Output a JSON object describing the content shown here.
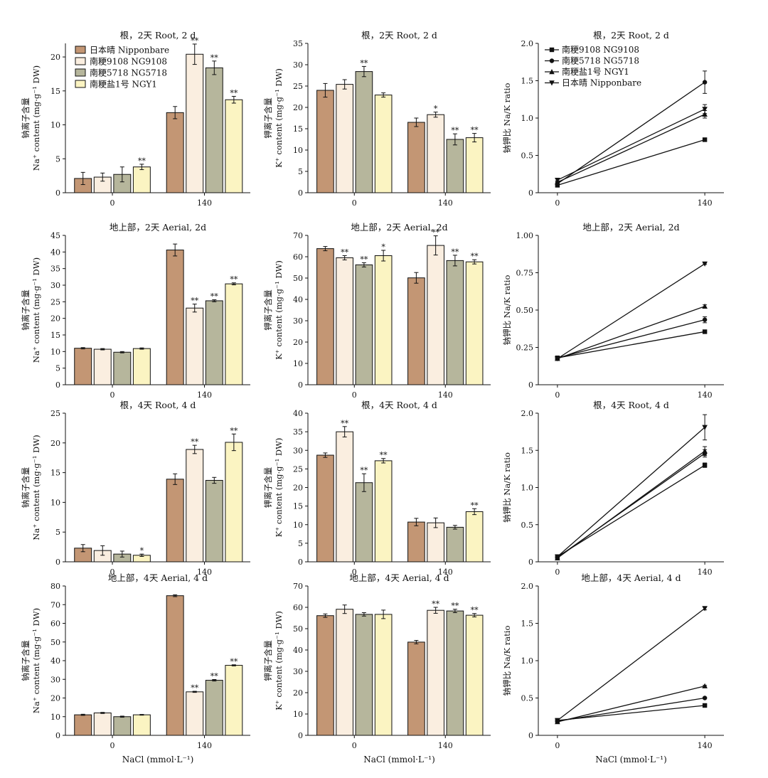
{
  "colors": {
    "Nipponbare": "#c39674",
    "NG9108": "#faeee0",
    "NG5718": "#b6b69c",
    "NGY1": "#fbf4c2",
    "line": "#111111"
  },
  "legend_bar": {
    "placement": "top-left of first panel",
    "entries": [
      "日本晴 Nipponbare",
      "南粳9108 NG9108",
      "南粳5718 NG5718",
      "南粳盐1号 NGY1"
    ]
  },
  "legend_line": {
    "placement": "top-left of first ratio panel",
    "entries": [
      "南粳9108 NG9108",
      "南粳5718 NG5718",
      "南粳盐1号 NGY1",
      "日本晴 Nipponbare"
    ],
    "markers": [
      "square",
      "circle",
      "triangle-up",
      "triangle-down"
    ]
  },
  "shared": {
    "xlabel": "NaCl (mmol·L⁻¹)",
    "na_ylabel_line1": "钠离子含量",
    "na_ylabel_line2": "Na⁺ content (mg·g⁻¹ DW)",
    "k_ylabel_line1": "钾离子含量",
    "k_ylabel_line2": "K⁺ content (mg·g⁻¹ DW)",
    "ratio_ylabel": "钠钾比 Na/K ratio"
  },
  "chart_data": [
    {
      "type": "bar",
      "panel": "na-root-2d",
      "title": "根，2天 Root, 2 d",
      "categories": [
        "0",
        "140"
      ],
      "ylim": [
        0,
        22
      ],
      "yticks": [
        0,
        5,
        10,
        15,
        20
      ],
      "ylabel_kind": "na",
      "series": [
        {
          "name": "日本晴 Nipponbare",
          "color_key": "Nipponbare",
          "values": [
            2.1,
            11.8
          ],
          "errors": [
            0.9,
            0.9
          ],
          "sig": [
            "",
            ""
          ]
        },
        {
          "name": "南粳9108 NG9108",
          "color_key": "NG9108",
          "values": [
            2.3,
            20.4
          ],
          "errors": [
            0.6,
            1.5
          ],
          "sig": [
            "",
            "**"
          ]
        },
        {
          "name": "南粳5718 NG5718",
          "color_key": "NG5718",
          "values": [
            2.7,
            18.4
          ],
          "errors": [
            1.1,
            1.0
          ],
          "sig": [
            "",
            "**"
          ]
        },
        {
          "name": "南粳盐1号 NGY1",
          "color_key": "NGY1",
          "values": [
            3.8,
            13.7
          ],
          "errors": [
            0.4,
            0.5
          ],
          "sig": [
            "**",
            "**"
          ]
        }
      ]
    },
    {
      "type": "bar",
      "panel": "k-root-2d",
      "title": "根，2天 Root, 2 d",
      "categories": [
        "0",
        "140"
      ],
      "ylim": [
        0,
        35
      ],
      "yticks": [
        0,
        5,
        10,
        15,
        20,
        25,
        30,
        35
      ],
      "ylabel_kind": "k",
      "series": [
        {
          "name": "日本晴 Nipponbare",
          "color_key": "Nipponbare",
          "values": [
            24.0,
            16.5
          ],
          "errors": [
            1.6,
            1.0
          ],
          "sig": [
            "",
            ""
          ]
        },
        {
          "name": "南粳9108 NG9108",
          "color_key": "NG9108",
          "values": [
            25.4,
            18.3
          ],
          "errors": [
            1.1,
            0.6
          ],
          "sig": [
            "",
            "*"
          ]
        },
        {
          "name": "南粳5718 NG5718",
          "color_key": "NG5718",
          "values": [
            28.4,
            12.5
          ],
          "errors": [
            1.2,
            1.3
          ],
          "sig": [
            "**",
            "**"
          ]
        },
        {
          "name": "南粳盐1号 NGY1",
          "color_key": "NGY1",
          "values": [
            22.9,
            12.9
          ],
          "errors": [
            0.5,
            1.0
          ],
          "sig": [
            "",
            "**"
          ]
        }
      ]
    },
    {
      "type": "line",
      "panel": "ratio-root-2d",
      "title": "根，2天 Root, 2 d",
      "x": [
        "0",
        "140"
      ],
      "ylim": [
        0,
        2.0
      ],
      "yticks": [
        0,
        0.5,
        1.0,
        1.5,
        2.0
      ],
      "ytick_labels": [
        "0",
        "0.5",
        "1.0",
        "1.5",
        "2.0"
      ],
      "series": [
        {
          "name": "南粳9108 NG9108",
          "marker": "square",
          "values": [
            0.1,
            0.71
          ],
          "errors": [
            0.02,
            0.02
          ]
        },
        {
          "name": "南粳5718 NG5718",
          "marker": "circle",
          "values": [
            0.12,
            1.48
          ],
          "errors": [
            0.02,
            0.15
          ]
        },
        {
          "name": "南粳盐1号 NGY1",
          "marker": "triangle-up",
          "values": [
            0.14,
            1.05
          ],
          "errors": [
            0.02,
            0.05
          ]
        },
        {
          "name": "日本晴 Nipponbare",
          "marker": "triangle-down",
          "values": [
            0.17,
            1.12
          ],
          "errors": [
            0.02,
            0.06
          ]
        }
      ]
    },
    {
      "type": "bar",
      "panel": "na-aerial-2d",
      "title": "地上部，2天 Aerial, 2d",
      "categories": [
        "0",
        "140"
      ],
      "ylim": [
        0,
        45
      ],
      "yticks": [
        0,
        5,
        10,
        15,
        20,
        25,
        30,
        35,
        40,
        45
      ],
      "ylabel_kind": "na",
      "series": [
        {
          "name": "日本晴 Nipponbare",
          "color_key": "Nipponbare",
          "values": [
            11.0,
            40.6
          ],
          "errors": [
            0.2,
            1.8
          ],
          "sig": [
            "",
            ""
          ]
        },
        {
          "name": "南粳9108 NG9108",
          "color_key": "NG9108",
          "values": [
            10.7,
            23.1
          ],
          "errors": [
            0.2,
            1.2
          ],
          "sig": [
            "",
            "**"
          ]
        },
        {
          "name": "南粳5718 NG5718",
          "color_key": "NG5718",
          "values": [
            9.8,
            25.3
          ],
          "errors": [
            0.2,
            0.3
          ],
          "sig": [
            "",
            "**"
          ]
        },
        {
          "name": "南粳盐1号 NGY1",
          "color_key": "NGY1",
          "values": [
            10.9,
            30.4
          ],
          "errors": [
            0.2,
            0.3
          ],
          "sig": [
            "",
            "**"
          ]
        }
      ]
    },
    {
      "type": "bar",
      "panel": "k-aerial-2d",
      "title": "地上部，2天  Aerial, 2d",
      "categories": [
        "0",
        "140"
      ],
      "ylim": [
        0,
        70
      ],
      "yticks": [
        0,
        10,
        20,
        30,
        40,
        50,
        60,
        70
      ],
      "ylabel_kind": "k",
      "series": [
        {
          "name": "日本晴 Nipponbare",
          "color_key": "Nipponbare",
          "values": [
            63.8,
            50.1
          ],
          "errors": [
            1.0,
            2.5
          ],
          "sig": [
            "",
            ""
          ]
        },
        {
          "name": "南粳9108 NG9108",
          "color_key": "NG9108",
          "values": [
            59.5,
            65.3
          ],
          "errors": [
            1.0,
            4.5
          ],
          "sig": [
            "**",
            "**"
          ]
        },
        {
          "name": "南粳5718 NG5718",
          "color_key": "NG5718",
          "values": [
            56.2,
            58.2
          ],
          "errors": [
            1.0,
            2.5
          ],
          "sig": [
            "**",
            "**"
          ]
        },
        {
          "name": "南粳盐1号 NGY1",
          "color_key": "NGY1",
          "values": [
            60.5,
            57.6
          ],
          "errors": [
            2.5,
            1.0
          ],
          "sig": [
            "*",
            "**"
          ]
        }
      ]
    },
    {
      "type": "line",
      "panel": "ratio-aerial-2d",
      "title": "地上部，2天  Aerial, 2d",
      "x": [
        "0",
        "140"
      ],
      "ylim": [
        0,
        1.0
      ],
      "yticks": [
        0,
        0.25,
        0.5,
        0.75,
        1.0
      ],
      "ytick_labels": [
        "0",
        "0.25",
        "0.50",
        "0.75",
        "1.00"
      ],
      "series": [
        {
          "name": "南粳9108 NG9108",
          "marker": "square",
          "values": [
            0.18,
            0.355
          ],
          "errors": [
            0.01,
            0.005
          ]
        },
        {
          "name": "南粳5718 NG5718",
          "marker": "circle",
          "values": [
            0.18,
            0.435
          ],
          "errors": [
            0.01,
            0.02
          ]
        },
        {
          "name": "南粳盐1号 NGY1",
          "marker": "triangle-up",
          "values": [
            0.175,
            0.525
          ],
          "errors": [
            0.01,
            0.01
          ]
        },
        {
          "name": "日本晴 Nipponbare",
          "marker": "triangle-down",
          "values": [
            0.175,
            0.81
          ],
          "errors": [
            0.01,
            0.005
          ]
        }
      ]
    },
    {
      "type": "bar",
      "panel": "na-root-4d",
      "title": "根，4天 Root, 4 d",
      "categories": [
        "0",
        "140"
      ],
      "ylim": [
        0,
        25
      ],
      "yticks": [
        0,
        5,
        10,
        15,
        20,
        25
      ],
      "ylabel_kind": "na",
      "series": [
        {
          "name": "日本晴 Nipponbare",
          "color_key": "Nipponbare",
          "values": [
            2.3,
            13.9
          ],
          "errors": [
            0.6,
            0.9
          ],
          "sig": [
            "",
            ""
          ]
        },
        {
          "name": "南粳9108 NG9108",
          "color_key": "NG9108",
          "values": [
            1.9,
            18.9
          ],
          "errors": [
            0.8,
            0.7
          ],
          "sig": [
            "",
            "**"
          ]
        },
        {
          "name": "南粳5718 NG5718",
          "color_key": "NG5718",
          "values": [
            1.3,
            13.7
          ],
          "errors": [
            0.5,
            0.5
          ],
          "sig": [
            "",
            ""
          ]
        },
        {
          "name": "南粳盐1号 NGY1",
          "color_key": "NGY1",
          "values": [
            1.1,
            20.1
          ],
          "errors": [
            0.2,
            1.4
          ],
          "sig": [
            "*",
            "**"
          ]
        }
      ]
    },
    {
      "type": "bar",
      "panel": "k-root-4d",
      "title": "根，4天 Root, 4 d",
      "categories": [
        "0",
        "140"
      ],
      "ylim": [
        0,
        40
      ],
      "yticks": [
        0,
        5,
        10,
        15,
        20,
        25,
        30,
        35,
        40
      ],
      "ylabel_kind": "k",
      "series": [
        {
          "name": "日本晴 Nipponbare",
          "color_key": "Nipponbare",
          "values": [
            28.7,
            10.7
          ],
          "errors": [
            0.6,
            1.0
          ],
          "sig": [
            "",
            ""
          ]
        },
        {
          "name": "南粳9108 NG9108",
          "color_key": "NG9108",
          "values": [
            35.0,
            10.5
          ],
          "errors": [
            1.4,
            1.3
          ],
          "sig": [
            "**",
            ""
          ]
        },
        {
          "name": "南粳5718 NG5718",
          "color_key": "NG5718",
          "values": [
            21.3,
            9.3
          ],
          "errors": [
            2.4,
            0.5
          ],
          "sig": [
            "**",
            ""
          ]
        },
        {
          "name": "南粳盐1号 NGY1",
          "color_key": "NGY1",
          "values": [
            27.2,
            13.5
          ],
          "errors": [
            0.6,
            0.8
          ],
          "sig": [
            "**",
            "**"
          ]
        }
      ]
    },
    {
      "type": "line",
      "panel": "ratio-root-4d",
      "title": "根，4天 Root, 4 d",
      "x": [
        "0",
        "140"
      ],
      "ylim": [
        0,
        2.0
      ],
      "yticks": [
        0,
        0.5,
        1.0,
        1.5,
        2.0
      ],
      "ytick_labels": [
        "0",
        "0.5",
        "1.0",
        "1.5",
        "2.0"
      ],
      "series": [
        {
          "name": "南粳9108 NG9108",
          "marker": "square",
          "values": [
            0.07,
            1.3
          ],
          "errors": [
            0.01,
            0.03
          ]
        },
        {
          "name": "南粳5718 NG5718",
          "marker": "circle",
          "values": [
            0.06,
            1.46
          ],
          "errors": [
            0.01,
            0.05
          ]
        },
        {
          "name": "南粳盐1号 NGY1",
          "marker": "triangle-up",
          "values": [
            0.05,
            1.49
          ],
          "errors": [
            0.01,
            0.06
          ]
        },
        {
          "name": "日本晴 Nipponbare",
          "marker": "triangle-down",
          "values": [
            0.07,
            1.81
          ],
          "errors": [
            0.01,
            0.17
          ]
        }
      ]
    },
    {
      "type": "bar",
      "panel": "na-aerial-4d",
      "title": "地上部，4天  Aerial, 4 d",
      "categories": [
        "0",
        "140"
      ],
      "ylim": [
        0,
        80
      ],
      "yticks": [
        0,
        10,
        20,
        30,
        40,
        50,
        60,
        70,
        80
      ],
      "ylabel_kind": "na",
      "series": [
        {
          "name": "日本晴 Nipponbare",
          "color_key": "Nipponbare",
          "values": [
            11.0,
            74.8
          ],
          "errors": [
            0.3,
            0.5
          ],
          "sig": [
            "",
            ""
          ]
        },
        {
          "name": "南粳9108 NG9108",
          "color_key": "NG9108",
          "values": [
            12.0,
            23.3
          ],
          "errors": [
            0.3,
            0.3
          ],
          "sig": [
            "",
            "**"
          ]
        },
        {
          "name": "南粳5718 NG5718",
          "color_key": "NG5718",
          "values": [
            10.0,
            29.5
          ],
          "errors": [
            0.3,
            0.4
          ],
          "sig": [
            "",
            "**"
          ]
        },
        {
          "name": "南粳盐1号 NGY1",
          "color_key": "NGY1",
          "values": [
            11.0,
            37.5
          ],
          "errors": [
            0.2,
            0.3
          ],
          "sig": [
            "",
            "**"
          ]
        }
      ]
    },
    {
      "type": "bar",
      "panel": "k-aerial-4d",
      "title": "地上部，4天  Aerial, 4 d",
      "categories": [
        "0",
        "140"
      ],
      "ylim": [
        0,
        70
      ],
      "yticks": [
        0,
        10,
        20,
        30,
        40,
        50,
        60,
        70
      ],
      "ylabel_kind": "k",
      "series": [
        {
          "name": "日本晴 Nipponbare",
          "color_key": "Nipponbare",
          "values": [
            56.1,
            43.7
          ],
          "errors": [
            0.8,
            0.8
          ],
          "sig": [
            "",
            ""
          ]
        },
        {
          "name": "南粳9108 NG9108",
          "color_key": "NG9108",
          "values": [
            59.1,
            58.6
          ],
          "errors": [
            2.0,
            1.4
          ],
          "sig": [
            "",
            "**"
          ]
        },
        {
          "name": "南粳5718 NG5718",
          "color_key": "NG5718",
          "values": [
            56.7,
            58.3
          ],
          "errors": [
            0.8,
            0.8
          ],
          "sig": [
            "",
            "**"
          ]
        },
        {
          "name": "南粳盐1号 NGY1",
          "color_key": "NGY1",
          "values": [
            56.7,
            56.3
          ],
          "errors": [
            2.0,
            0.8
          ],
          "sig": [
            "",
            "**"
          ]
        }
      ]
    },
    {
      "type": "line",
      "panel": "ratio-aerial-4d",
      "title": "地上部，4天  Aerial, 4 d",
      "x": [
        "0",
        "140"
      ],
      "ylim": [
        0,
        2.0
      ],
      "yticks": [
        0,
        0.5,
        1.0,
        1.5,
        2.0
      ],
      "ytick_labels": [
        "0",
        "0.5",
        "1.0",
        "1.5",
        "2.0"
      ],
      "series": [
        {
          "name": "南粳9108 NG9108",
          "marker": "square",
          "values": [
            0.2,
            0.4
          ],
          "errors": [
            0.01,
            0.01
          ]
        },
        {
          "name": "南粳5718 NG5718",
          "marker": "circle",
          "values": [
            0.19,
            0.5
          ],
          "errors": [
            0.01,
            0.01
          ]
        },
        {
          "name": "南粳盐1号 NGY1",
          "marker": "triangle-up",
          "values": [
            0.18,
            0.66
          ],
          "errors": [
            0.01,
            0.01
          ]
        },
        {
          "name": "日本晴 Nipponbare",
          "marker": "triangle-down",
          "values": [
            0.2,
            1.7
          ],
          "errors": [
            0.01,
            0.02
          ]
        }
      ]
    }
  ]
}
